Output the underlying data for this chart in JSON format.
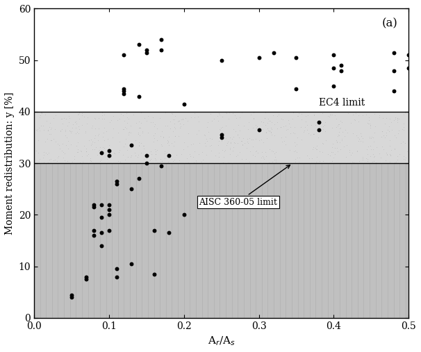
{
  "title": "(a)",
  "xlabel": "A$_r$/A$_s$",
  "ylabel": "Moment redistribution: y [%]",
  "xlim": [
    0,
    0.5
  ],
  "ylim": [
    0,
    60
  ],
  "xticks": [
    0,
    0.1,
    0.2,
    0.3,
    0.4,
    0.5
  ],
  "yticks": [
    0,
    10,
    20,
    30,
    40,
    50,
    60
  ],
  "ec4_limit": 40,
  "aisc_limit": 30,
  "ec4_label": "EC4 limit",
  "aisc_label": "AISC 360-05 limit",
  "scatter_x": [
    0.05,
    0.05,
    0.07,
    0.07,
    0.08,
    0.08,
    0.08,
    0.08,
    0.09,
    0.09,
    0.09,
    0.09,
    0.09,
    0.1,
    0.1,
    0.1,
    0.1,
    0.1,
    0.1,
    0.11,
    0.11,
    0.11,
    0.11,
    0.12,
    0.12,
    0.12,
    0.12,
    0.13,
    0.13,
    0.13,
    0.14,
    0.14,
    0.14,
    0.15,
    0.15,
    0.15,
    0.15,
    0.16,
    0.16,
    0.17,
    0.17,
    0.17,
    0.18,
    0.18,
    0.2,
    0.2,
    0.25,
    0.25,
    0.25,
    0.3,
    0.3,
    0.32,
    0.35,
    0.35,
    0.38,
    0.38,
    0.4,
    0.4,
    0.4,
    0.41,
    0.41,
    0.48,
    0.48,
    0.48,
    0.5,
    0.5
  ],
  "scatter_y": [
    4.0,
    4.5,
    7.5,
    8.0,
    16.0,
    17.0,
    21.5,
    22.0,
    14.0,
    16.5,
    19.5,
    22.0,
    32.0,
    17.0,
    20.0,
    21.0,
    22.0,
    31.5,
    32.5,
    8.0,
    9.5,
    26.0,
    26.5,
    43.5,
    44.0,
    44.5,
    51.0,
    10.5,
    25.0,
    33.5,
    27.0,
    43.0,
    53.0,
    30.0,
    31.5,
    51.5,
    52.0,
    8.5,
    17.0,
    29.5,
    52.0,
    54.0,
    16.5,
    31.5,
    20.0,
    41.5,
    35.0,
    35.5,
    50.0,
    36.5,
    50.5,
    51.5,
    44.5,
    50.5,
    36.5,
    38.0,
    45.0,
    48.5,
    51.0,
    48.0,
    49.0,
    44.0,
    48.0,
    51.5,
    48.5,
    51.0
  ],
  "dot_color": "#000000",
  "dot_size": 18,
  "bg_below_aisc": "#b0b0b0",
  "bg_between": "#d8d8d8",
  "bg_above_ec4": "#ffffff",
  "vline_color": "#888888",
  "hline_color": "#000000"
}
